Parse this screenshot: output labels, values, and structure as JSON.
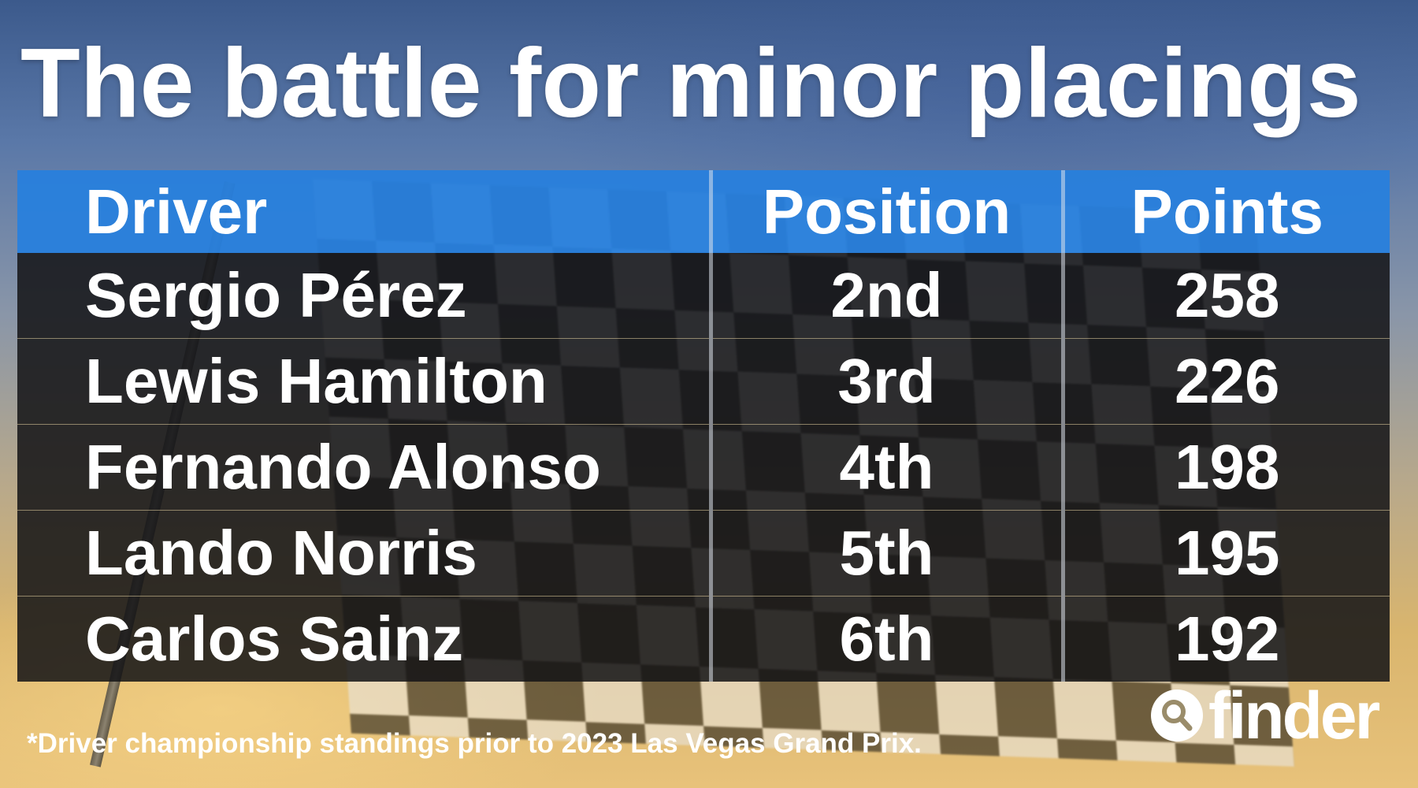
{
  "title": "The battle for minor placings",
  "table": {
    "headers": [
      "Driver",
      "Position",
      "Points"
    ],
    "rows": [
      {
        "driver": "Sergio Pérez",
        "position": "2nd",
        "points": "258"
      },
      {
        "driver": "Lewis Hamilton",
        "position": "3rd",
        "points": "226"
      },
      {
        "driver": "Fernando Alonso",
        "position": "4th",
        "points": "198"
      },
      {
        "driver": "Lando Norris",
        "position": "5th",
        "points": "195"
      },
      {
        "driver": "Carlos Sainz",
        "position": "6th",
        "points": "192"
      }
    ]
  },
  "footnote": "*Driver championship standings prior to 2023 Las Vegas Grand Prix.",
  "brand": {
    "name": "finder",
    "icon": "magnifier-icon"
  },
  "colors": {
    "header": "#2880dc",
    "row": "#141416",
    "text": "#ffffff"
  },
  "chart_data": {
    "type": "table",
    "columns": [
      "Driver",
      "Position",
      "Points"
    ],
    "rows": [
      [
        "Sergio Pérez",
        "2nd",
        258
      ],
      [
        "Lewis Hamilton",
        "3rd",
        226
      ],
      [
        "Fernando Alonso",
        "4th",
        198
      ],
      [
        "Lando Norris",
        "5th",
        195
      ],
      [
        "Carlos Sainz",
        "6th",
        192
      ]
    ]
  }
}
